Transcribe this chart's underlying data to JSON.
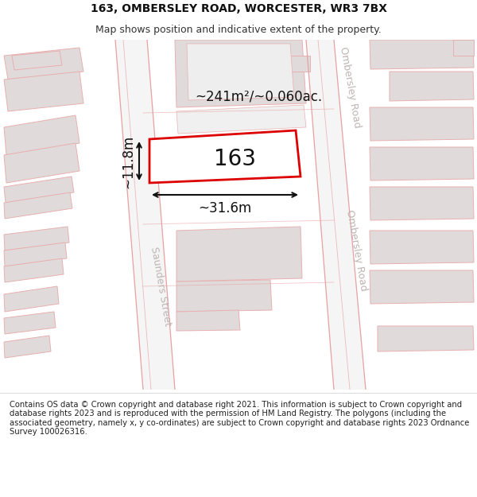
{
  "title_line1": "163, OMBERSLEY ROAD, WORCESTER, WR3 7BX",
  "title_line2": "Map shows position and indicative extent of the property.",
  "footer_text": "Contains OS data © Crown copyright and database right 2021. This information is subject to Crown copyright and database rights 2023 and is reproduced with the permission of HM Land Registry. The polygons (including the associated geometry, namely x, y co-ordinates) are subject to Crown copyright and database rights 2023 Ordnance Survey 100026316.",
  "area_label": "~241m²/~0.060ac.",
  "number_label": "163",
  "width_label": "~31.6m",
  "height_label": "~11.8m",
  "road_label_right1": "Ombersley Road",
  "road_label_right2": "Ombersley Road",
  "road_label_left": "Saunders Street",
  "map_bg": "#ffffff",
  "building_fill": "#e0dada",
  "building_edge": "#e8b0b0",
  "road_line_color": "#e8a0a0",
  "plot_fill": "#ffffff",
  "plot_edge": "#dd0000",
  "arrow_color": "#111111",
  "title_fontsize": 10,
  "subtitle_fontsize": 9,
  "footer_fontsize": 7.2,
  "label_fontsize": 12,
  "number_fontsize": 20,
  "road_fontsize": 9
}
